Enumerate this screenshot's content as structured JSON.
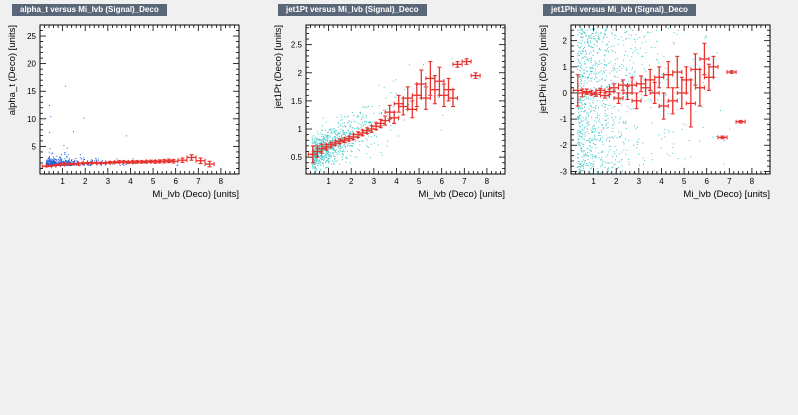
{
  "panels": [
    {
      "title": "alpha_t versus Mi_lvb (Signal)_Deco"
    },
    {
      "title": "jet1Pt versus Mi_lvb (Signal)_Deco"
    },
    {
      "title": "jet1Phi versus Mi_lvb (Signal)_Deco"
    }
  ],
  "colors": {
    "scatter_blue": "#1f5fe0",
    "scatter_cyan": "#3fc8c8",
    "profile_red": "#e8322e",
    "frame": "#000000",
    "background": "#f0f0f0",
    "title_tab": "#5a6779"
  },
  "chart_data": [
    {
      "type": "scatter",
      "title": "alpha_t versus Mi_lvb (Signal)_Deco",
      "xlabel": "Mi_lvb (Deco)  [units]",
      "ylabel": "alpha_t (Deco)  [units]",
      "xlim": [
        0,
        8.8
      ],
      "ylim": [
        0,
        27
      ],
      "xticks": [
        1,
        2,
        3,
        4,
        5,
        6,
        7,
        8
      ],
      "yticks": [
        5,
        10,
        15,
        20,
        25
      ],
      "scatter_color": "blue",
      "profile": {
        "x": [
          0.3,
          0.5,
          0.7,
          0.9,
          1.1,
          1.3,
          1.5,
          1.7,
          1.9,
          2.1,
          2.3,
          2.5,
          2.7,
          2.9,
          3.1,
          3.3,
          3.5,
          3.7,
          3.9,
          4.1,
          4.3,
          4.5,
          4.7,
          4.9,
          5.1,
          5.3,
          5.5,
          5.7,
          5.9,
          6.3,
          6.7,
          7.1,
          7.5
        ],
        "y": [
          1.4,
          1.5,
          1.6,
          1.7,
          1.8,
          1.8,
          1.8,
          1.9,
          1.9,
          2.0,
          2.0,
          2.0,
          2.0,
          2.0,
          2.1,
          2.1,
          2.2,
          2.2,
          2.1,
          2.2,
          2.2,
          2.2,
          2.2,
          2.3,
          2.2,
          2.3,
          2.3,
          2.4,
          2.3,
          2.5,
          3.0,
          2.4,
          1.8
        ],
        "err": [
          0.1,
          0.1,
          0.1,
          0.1,
          0.1,
          0.1,
          0.1,
          0.1,
          0.1,
          0.1,
          0.1,
          0.1,
          0.1,
          0.1,
          0.15,
          0.15,
          0.2,
          0.2,
          0.2,
          0.2,
          0.2,
          0.2,
          0.2,
          0.2,
          0.25,
          0.25,
          0.3,
          0.3,
          0.3,
          0.4,
          0.5,
          0.5,
          0.5
        ]
      }
    },
    {
      "type": "scatter",
      "title": "jet1Pt versus Mi_lvb (Signal)_Deco",
      "xlabel": "Mi_lvb (Deco)  [units]",
      "ylabel": "jet1Pt (Deco)  [units]",
      "xlim": [
        0,
        8.8
      ],
      "ylim": [
        0.2,
        2.85
      ],
      "xticks": [
        1,
        2,
        3,
        4,
        5,
        6,
        7,
        8
      ],
      "yticks": [
        0.5,
        1,
        1.5,
        2,
        2.5
      ],
      "scatter_color": "cyan",
      "profile": {
        "x": [
          0.3,
          0.5,
          0.7,
          0.9,
          1.1,
          1.3,
          1.5,
          1.7,
          1.9,
          2.1,
          2.3,
          2.5,
          2.7,
          2.9,
          3.1,
          3.3,
          3.5,
          3.7,
          3.9,
          4.1,
          4.3,
          4.5,
          4.7,
          4.9,
          5.1,
          5.3,
          5.5,
          5.7,
          5.9,
          6.1,
          6.3,
          6.5,
          6.7,
          7.1,
          7.5
        ],
        "y": [
          0.55,
          0.6,
          0.65,
          0.68,
          0.72,
          0.75,
          0.78,
          0.8,
          0.83,
          0.86,
          0.9,
          0.93,
          0.97,
          1.0,
          1.05,
          1.1,
          1.15,
          1.3,
          1.2,
          1.45,
          1.4,
          1.55,
          1.35,
          1.6,
          1.8,
          1.55,
          1.9,
          1.7,
          1.85,
          1.6,
          1.7,
          1.55,
          2.15,
          2.2,
          1.95
        ],
        "err": [
          0.15,
          0.1,
          0.08,
          0.05,
          0.04,
          0.04,
          0.04,
          0.04,
          0.04,
          0.05,
          0.05,
          0.05,
          0.05,
          0.06,
          0.06,
          0.07,
          0.08,
          0.12,
          0.1,
          0.15,
          0.15,
          0.2,
          0.15,
          0.2,
          0.25,
          0.2,
          0.3,
          0.25,
          0.25,
          0.2,
          0.2,
          0.15,
          0.05,
          0.05,
          0.05
        ]
      }
    },
    {
      "type": "scatter",
      "title": "jet1Phi versus Mi_lvb (Signal)_Deco",
      "xlabel": "Mi_lvb (Deco)  [units]",
      "ylabel": "jet1Phi (Deco)  [units]",
      "xlim": [
        0,
        8.8
      ],
      "ylim": [
        -3.1,
        2.6
      ],
      "xticks": [
        1,
        2,
        3,
        4,
        5,
        6,
        7,
        8
      ],
      "yticks": [
        -3,
        -2,
        -1,
        0,
        1,
        2
      ],
      "scatter_color": "cyan",
      "profile": {
        "x": [
          0.3,
          0.5,
          0.7,
          0.9,
          1.1,
          1.3,
          1.5,
          1.7,
          1.9,
          2.1,
          2.3,
          2.5,
          2.7,
          2.9,
          3.1,
          3.3,
          3.5,
          3.7,
          3.9,
          4.1,
          4.3,
          4.5,
          4.7,
          4.9,
          5.1,
          5.3,
          5.5,
          5.7,
          5.9,
          6.1,
          6.3,
          6.7,
          7.1,
          7.5
        ],
        "y": [
          0.1,
          0.0,
          0.05,
          0.0,
          -0.05,
          0.1,
          -0.1,
          0.05,
          0.2,
          -0.2,
          0.3,
          0.0,
          0.3,
          -0.3,
          0.35,
          0.2,
          0.5,
          0.0,
          0.6,
          -0.5,
          0.7,
          -0.3,
          0.8,
          0.0,
          0.5,
          -0.4,
          0.9,
          0.2,
          1.3,
          0.6,
          1.0,
          -1.7,
          0.8,
          -1.1
        ],
        "err": [
          0.6,
          0.15,
          0.1,
          0.08,
          0.08,
          0.08,
          0.1,
          0.1,
          0.15,
          0.2,
          0.2,
          0.25,
          0.3,
          0.3,
          0.3,
          0.3,
          0.4,
          0.4,
          0.4,
          0.5,
          0.5,
          0.5,
          0.6,
          0.6,
          0.5,
          0.9,
          0.6,
          0.7,
          0.6,
          0.5,
          0.4,
          0.05,
          0.05,
          0.05
        ]
      }
    }
  ]
}
